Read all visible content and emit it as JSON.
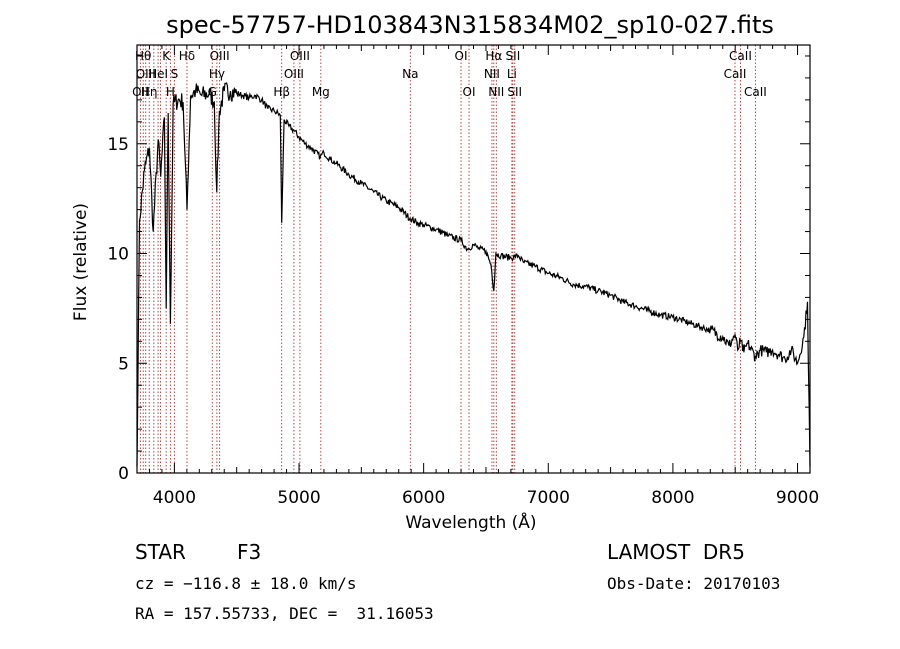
{
  "chart_data": {
    "type": "line",
    "title": "spec-57757-HD103843N315834M02_sp10-027.fits",
    "xlabel": "Wavelength (Å)",
    "ylabel": "Flux (relative)",
    "xlim": [
      3700,
      9100
    ],
    "ylim": [
      0,
      19.5
    ],
    "xticks": [
      4000,
      5000,
      6000,
      7000,
      8000,
      9000
    ],
    "yticks": [
      0,
      5,
      10,
      15
    ],
    "grid": false,
    "series": [
      {
        "x": [
          3700,
          3720,
          3760,
          3800,
          3830,
          3870,
          3890,
          3920,
          3934,
          3950,
          3968,
          3990,
          4030,
          4070,
          4101,
          4130,
          4170,
          4220,
          4280,
          4320,
          4340,
          4361,
          4400,
          4450,
          4500,
          4550,
          4600,
          4650,
          4700,
          4750,
          4800,
          4850,
          4861,
          4880,
          4920,
          4960,
          5000,
          5050,
          5100,
          5170,
          5200,
          5250,
          5300,
          5400,
          5500,
          5600,
          5700,
          5800,
          5890,
          5950,
          6000,
          6100,
          6200,
          6300,
          6350,
          6400,
          6450,
          6500,
          6540,
          6563,
          6580,
          6620,
          6700,
          6760,
          6800,
          6900,
          7000,
          7100,
          7200,
          7300,
          7400,
          7500,
          7600,
          7700,
          7800,
          7900,
          8000,
          8100,
          8200,
          8300,
          8400,
          8450,
          8498,
          8520,
          8542,
          8570,
          8600,
          8662,
          8700,
          8750,
          8800,
          8850,
          8900,
          8950,
          9000,
          9050,
          9080,
          9100
        ],
        "y": [
          0.3,
          11.5,
          13.8,
          14.8,
          11,
          15.2,
          13.5,
          16.2,
          7.5,
          16.4,
          6.8,
          16.8,
          17.0,
          16.9,
          12.0,
          17.2,
          17.4,
          17.2,
          17.3,
          16.9,
          12.8,
          16.5,
          17.4,
          17.4,
          17.3,
          17.2,
          17.1,
          17.2,
          17.0,
          16.6,
          16.5,
          16.3,
          11.4,
          16.1,
          15.8,
          15.6,
          15.3,
          15.0,
          14.8,
          14.4,
          14.6,
          14.3,
          14.1,
          13.6,
          13.2,
          12.8,
          12.4,
          12.1,
          11.6,
          11.4,
          11.3,
          11.1,
          10.8,
          10.6,
          10.2,
          10.4,
          10.2,
          10.1,
          9.5,
          8.3,
          10.0,
          9.9,
          9.8,
          9.9,
          9.6,
          9.4,
          9.1,
          8.9,
          8.6,
          8.5,
          8.3,
          8.1,
          7.8,
          7.6,
          7.4,
          7.2,
          7.1,
          6.9,
          6.7,
          6.5,
          6.2,
          5.8,
          6.3,
          5.6,
          6.0,
          5.5,
          5.9,
          5.3,
          5.6,
          5.5,
          5.6,
          5.4,
          5.2,
          5.6,
          5.0,
          6.2,
          7.8,
          0.3
        ]
      }
    ],
    "lines": [
      {
        "w": 3727,
        "label": "OII",
        "row": 2
      },
      {
        "w": 3750,
        "label": "Hθ",
        "row": 0
      },
      {
        "w": 3770,
        "label": "OIII",
        "row": 1
      },
      {
        "w": 3798,
        "label": "Hη",
        "row": 2
      },
      {
        "w": 3835,
        "label": "",
        "row": 0
      },
      {
        "w": 3869,
        "label": "HeI",
        "row": 1
      },
      {
        "w": 3889,
        "label": "",
        "row": 0
      },
      {
        "w": 3934,
        "label": "K",
        "row": 0
      },
      {
        "w": 3968,
        "label": "H",
        "row": 2
      },
      {
        "w": 4000,
        "label": "S",
        "row": 1
      },
      {
        "w": 4101,
        "label": "Hδ",
        "row": 0
      },
      {
        "w": 4304,
        "label": "G",
        "row": 2
      },
      {
        "w": 4341,
        "label": "Hγ",
        "row": 1
      },
      {
        "w": 4363,
        "label": "OIII",
        "row": 0
      },
      {
        "w": 4861,
        "label": "Hβ",
        "row": 2
      },
      {
        "w": 4959,
        "label": "OIII",
        "row": 1
      },
      {
        "w": 5007,
        "label": "OIII",
        "row": 0
      },
      {
        "w": 5175,
        "label": "Mg",
        "row": 2
      },
      {
        "w": 5893,
        "label": "Na",
        "row": 1
      },
      {
        "w": 6300,
        "label": "OI",
        "row": 0
      },
      {
        "w": 6364,
        "label": "OI",
        "row": 2
      },
      {
        "w": 6548,
        "label": "NII",
        "row": 1
      },
      {
        "w": 6563,
        "label": "Hα",
        "row": 0
      },
      {
        "w": 6583,
        "label": "NII",
        "row": 2
      },
      {
        "w": 6708,
        "label": "Li",
        "row": 1
      },
      {
        "w": 6716,
        "label": "SII",
        "row": 0
      },
      {
        "w": 6731,
        "label": "SII",
        "row": 2
      },
      {
        "w": 8498,
        "label": "CaII",
        "row": 1
      },
      {
        "w": 8542,
        "label": "CaII",
        "row": 0
      },
      {
        "w": 8662,
        "label": "CaII",
        "row": 2
      }
    ],
    "line_color": "#b03030"
  },
  "footer": {
    "object_class": "STAR",
    "subclass": "F3",
    "survey": "LAMOST  DR5",
    "redshift": "cz = −116.8 ± 18.0 km/s",
    "obs_date": "Obs-Date: 20170103",
    "coords": "RA = 157.55733, DEC =  31.16053"
  }
}
